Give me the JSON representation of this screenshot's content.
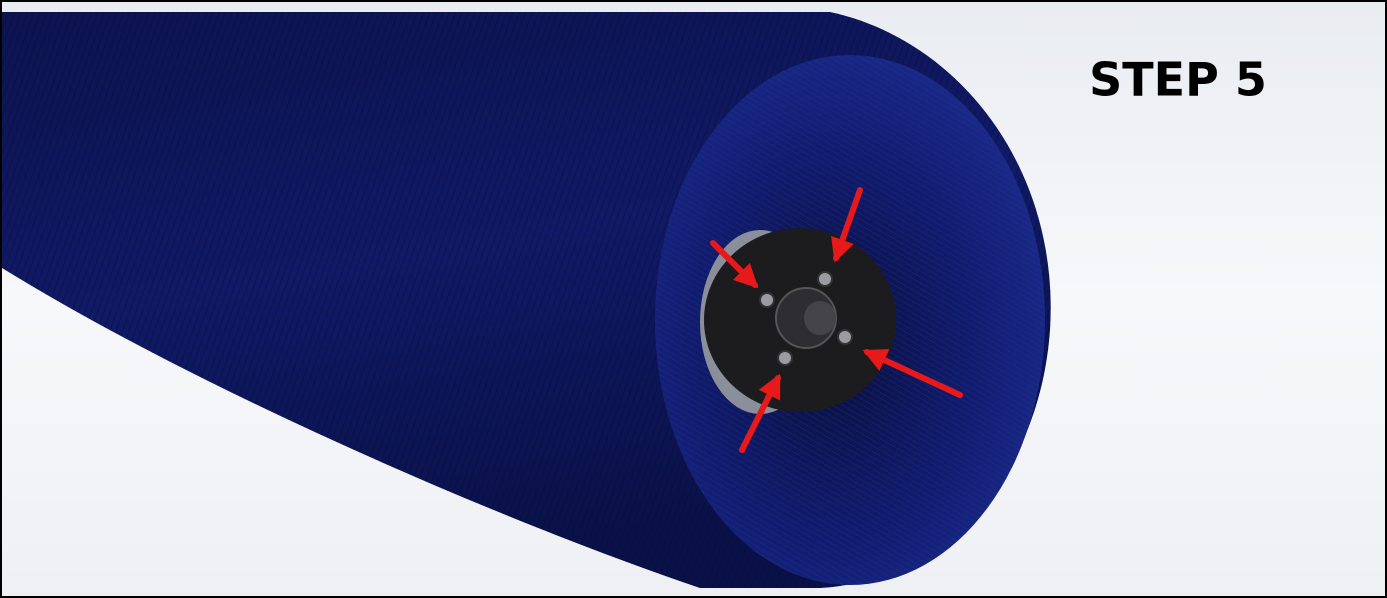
{
  "title": "STEP 5"
}
